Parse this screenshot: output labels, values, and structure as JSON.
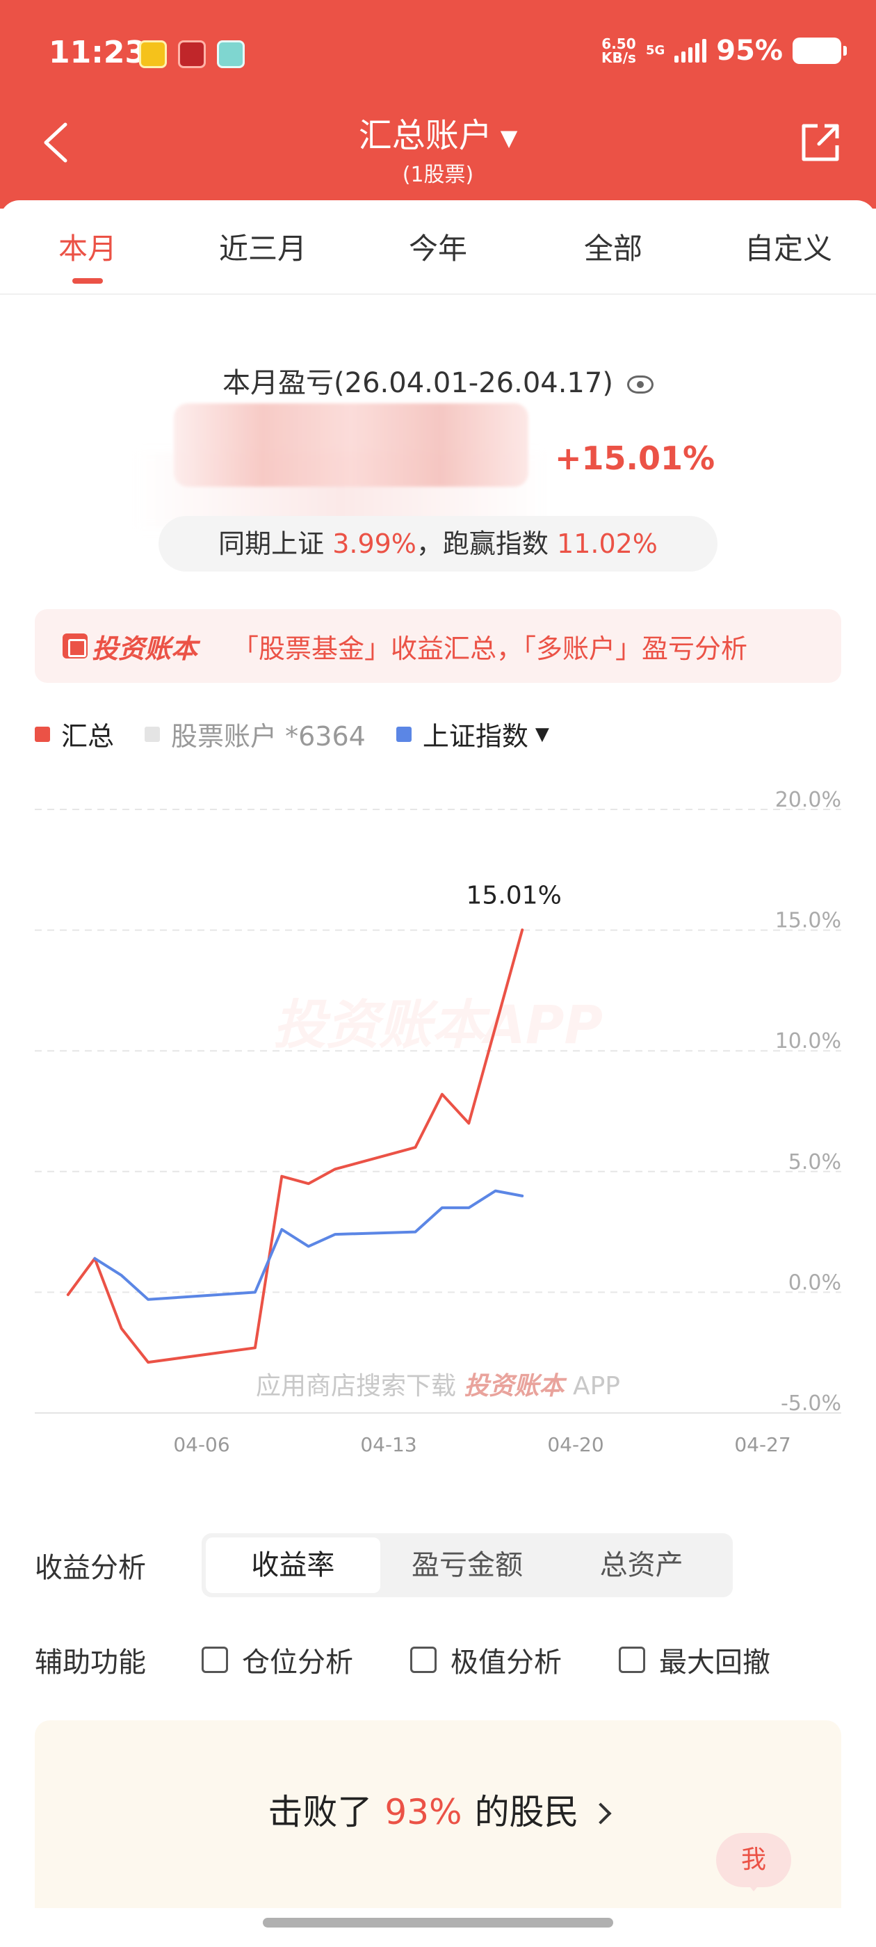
{
  "status_bar": {
    "time": "11:23",
    "net_speed_value": "6.50",
    "net_speed_unit": "KB/s",
    "network": "5G",
    "battery": "95%"
  },
  "nav": {
    "title": "汇总账户",
    "caret": "▼",
    "subtitle": "(1股票)",
    "back_icon": "back-arrow-icon",
    "share_icon": "share-icon"
  },
  "tabs": [
    {
      "label": "本月",
      "active": true
    },
    {
      "label": "近三月",
      "active": false
    },
    {
      "label": "今年",
      "active": false
    },
    {
      "label": "全部",
      "active": false
    },
    {
      "label": "自定义",
      "active": false
    }
  ],
  "summary": {
    "title": "本月盈亏(26.04.01-26.04.17)",
    "return_pct": "+15.01%",
    "compare_prefix": "同期上证",
    "compare_index_pct": "3.99%",
    "compare_mid": "，跑赢指数",
    "outperform_pct": "11.02%"
  },
  "banner": {
    "brand": "投资账本",
    "text": "「股票基金」收益汇总，「多账户」盈亏分析"
  },
  "legend": [
    {
      "label": "汇总",
      "color": "#eb5246"
    },
    {
      "label": "股票账户 *6364",
      "color": "#e4e4e4"
    },
    {
      "label": "上证指数",
      "color": "#5b86e5",
      "dropdown": "▼"
    }
  ],
  "chart_data": {
    "type": "line",
    "x_ticks": [
      "04-06",
      "04-13",
      "04-20",
      "04-27"
    ],
    "y_ticks": [
      "20.0%",
      "15.0%",
      "10.0%",
      "5.0%",
      "0.0%",
      "-5.0%"
    ],
    "ylim": [
      -5,
      20
    ],
    "peak_label": "15.01%",
    "watermark": "投资账本APP",
    "footer_text": "应用商店搜索下载",
    "footer_brand": "投资账本",
    "footer_app": "APP",
    "series": [
      {
        "name": "汇总",
        "color": "#eb5246",
        "points": [
          [
            "04-01",
            -0.1
          ],
          [
            "04-02",
            1.4
          ],
          [
            "04-03",
            -1.5
          ],
          [
            "04-04",
            -2.9
          ],
          [
            "04-08",
            -2.3
          ],
          [
            "04-09",
            4.8
          ],
          [
            "04-10",
            4.5
          ],
          [
            "04-11",
            5.1
          ],
          [
            "04-14",
            6.0
          ],
          [
            "04-15",
            8.2
          ],
          [
            "04-16",
            7.0
          ],
          [
            "04-18",
            15.01
          ]
        ]
      },
      {
        "name": "上证指数",
        "color": "#5b86e5",
        "points": [
          [
            "04-02",
            1.4
          ],
          [
            "04-03",
            0.7
          ],
          [
            "04-04",
            -0.3
          ],
          [
            "04-08",
            0.0
          ],
          [
            "04-09",
            2.6
          ],
          [
            "04-10",
            1.9
          ],
          [
            "04-11",
            2.4
          ],
          [
            "04-14",
            2.5
          ],
          [
            "04-15",
            3.5
          ],
          [
            "04-16",
            3.5
          ],
          [
            "04-17",
            4.2
          ],
          [
            "04-18",
            3.99
          ]
        ]
      }
    ]
  },
  "analysis": {
    "label": "收益分析",
    "options": [
      {
        "label": "收益率",
        "active": true
      },
      {
        "label": "盈亏金额",
        "active": false
      },
      {
        "label": "总资产",
        "active": false
      }
    ]
  },
  "aux": {
    "label": "辅助功能",
    "options": [
      "仓位分析",
      "极值分析",
      "最大回撤"
    ]
  },
  "beat": {
    "prefix": "击败了",
    "pct": "93%",
    "suffix": "的股民"
  },
  "me_bubble": "我"
}
